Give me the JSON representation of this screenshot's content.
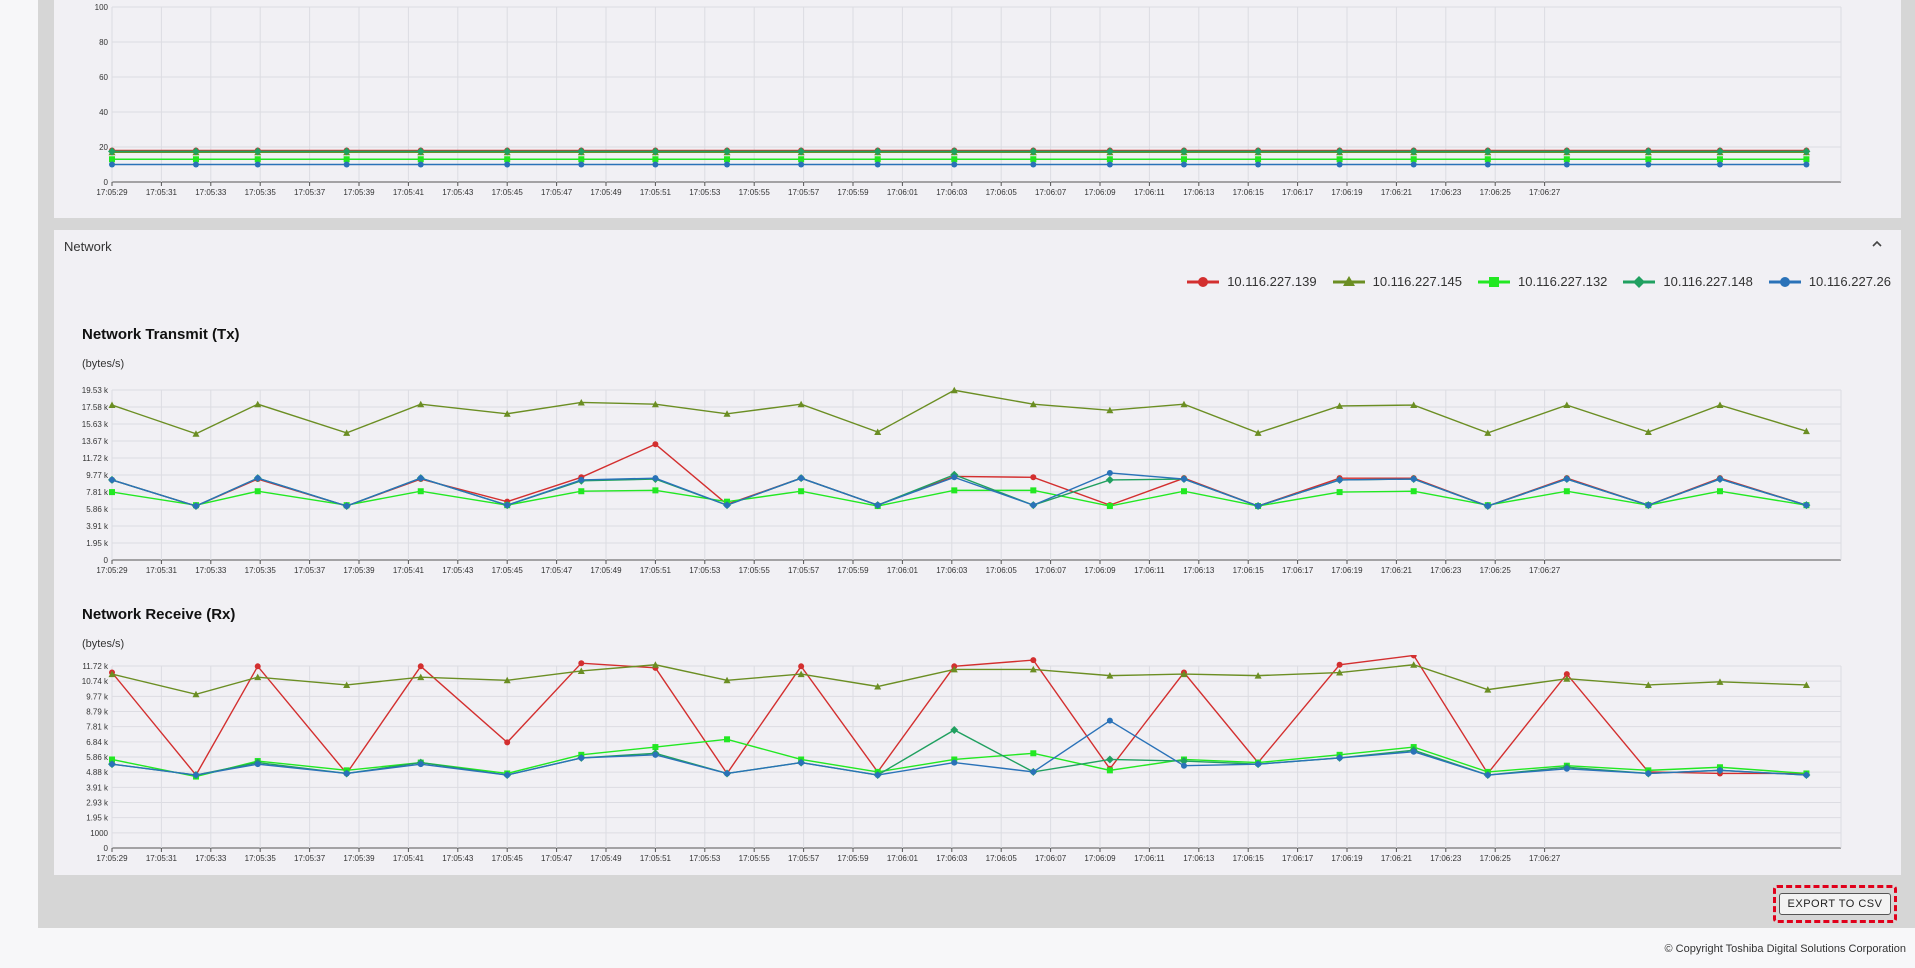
{
  "section_title": "Network",
  "legend": [
    {
      "name": "10.116.227.139",
      "color": "#d32f2f",
      "marker": "circle"
    },
    {
      "name": "10.116.227.145",
      "color": "#6b8e23",
      "marker": "triangle"
    },
    {
      "name": "10.116.227.132",
      "color": "#22e822",
      "marker": "square"
    },
    {
      "name": "10.116.227.148",
      "color": "#20a060",
      "marker": "diamond"
    },
    {
      "name": "10.116.227.26",
      "color": "#2a72b8",
      "marker": "circle"
    }
  ],
  "time_labels": [
    "17:05:29",
    "17:05:31",
    "17:05:33",
    "17:05:35",
    "17:05:37",
    "17:05:39",
    "17:05:41",
    "17:05:43",
    "17:05:45",
    "17:05:47",
    "17:05:49",
    "17:05:51",
    "17:05:53",
    "17:05:55",
    "17:05:57",
    "17:05:59",
    "17:06:01",
    "17:06:03",
    "17:06:05",
    "17:06:07",
    "17:06:09",
    "17:06:11",
    "17:06:13",
    "17:06:15",
    "17:06:17",
    "17:06:19",
    "17:06:21",
    "17:06:23",
    "17:06:25",
    "17:06:27"
  ],
  "chart_data": [
    {
      "type": "line",
      "title": "",
      "ylabel": "",
      "ylim": [
        0,
        100
      ],
      "y_ticks": [
        "0",
        "20",
        "40",
        "60",
        "80",
        "100"
      ],
      "x": [
        29,
        32.4,
        34.9,
        38.5,
        41.5,
        45,
        48,
        51,
        53.9,
        56.9,
        60,
        63.1,
        66.3,
        69.4,
        72.4,
        75.4,
        78.7,
        81.7,
        84.7,
        87.9,
        91.2,
        94.1,
        97.6
      ],
      "series": [
        {
          "name": "10.116.227.139",
          "values": [
            18,
            18,
            18,
            18,
            18,
            18,
            18,
            18,
            18,
            18,
            18,
            18,
            18,
            18,
            18,
            18,
            18,
            18,
            18,
            18,
            18,
            18,
            18
          ]
        },
        {
          "name": "10.116.227.145",
          "values": [
            17,
            17,
            17,
            17,
            17,
            17,
            17,
            17,
            17,
            17,
            17,
            17,
            17,
            17,
            17,
            17,
            17,
            17,
            17,
            17,
            17,
            17,
            17
          ]
        },
        {
          "name": "10.116.227.132",
          "values": [
            13,
            13,
            13,
            13,
            13,
            13,
            13,
            13,
            13,
            13,
            13,
            13,
            13,
            13,
            13,
            13,
            13,
            13,
            13,
            13,
            13,
            13,
            13
          ]
        },
        {
          "name": "10.116.227.148",
          "values": [
            17.5,
            17.5,
            17.5,
            17.5,
            17.5,
            17.5,
            17.5,
            17.5,
            17.5,
            17.5,
            17.5,
            17.5,
            17.5,
            17.5,
            17.5,
            17.5,
            17.5,
            17.5,
            17.5,
            17.5,
            17.5,
            17.5,
            17.5
          ]
        },
        {
          "name": "10.116.227.26",
          "values": [
            10,
            10,
            10,
            10,
            10,
            10,
            10,
            10,
            10,
            10,
            10,
            10,
            10,
            10,
            10,
            10,
            10,
            10,
            10,
            10,
            10,
            10,
            10
          ]
        }
      ]
    },
    {
      "type": "line",
      "title": "Network Transmit (Tx)",
      "ylabel": "(bytes/s)",
      "ylim": [
        0,
        19530
      ],
      "y_ticks": [
        "0",
        "1.95 k",
        "3.91 k",
        "5.86 k",
        "7.81 k",
        "9.77 k",
        "11.72 k",
        "13.67 k",
        "15.63 k",
        "17.58 k",
        "19.53 k"
      ],
      "x": [
        29,
        32.4,
        34.9,
        38.5,
        41.5,
        45,
        48,
        51,
        53.9,
        56.9,
        60,
        63.1,
        66.3,
        69.4,
        72.4,
        75.4,
        78.7,
        81.7,
        84.7,
        87.9,
        91.2,
        94.1,
        97.6
      ],
      "series": [
        {
          "name": "10.116.227.139",
          "values": [
            9200,
            6200,
            9300,
            6200,
            9300,
            6700,
            9500,
            13300,
            6400,
            9400,
            6300,
            9600,
            9500,
            6300,
            9400,
            6200,
            9400,
            9400,
            6200,
            9400,
            6300,
            9400,
            6300
          ]
        },
        {
          "name": "10.116.227.145",
          "values": [
            17800,
            14500,
            17900,
            14600,
            17900,
            16800,
            18100,
            17900,
            16800,
            17900,
            14700,
            19500,
            17900,
            17200,
            17900,
            14600,
            17700,
            17800,
            14600,
            17800,
            14700,
            17800,
            14800
          ]
        },
        {
          "name": "10.116.227.132",
          "values": [
            7800,
            6300,
            7900,
            6300,
            7900,
            6300,
            7900,
            8000,
            6700,
            7900,
            6200,
            8000,
            8000,
            6200,
            7900,
            6200,
            7800,
            7900,
            6300,
            7900,
            6300,
            7900,
            6300
          ]
        },
        {
          "name": "10.116.227.148",
          "values": [
            9200,
            6200,
            9400,
            6200,
            9400,
            6300,
            9100,
            9300,
            6300,
            9400,
            6300,
            9800,
            6300,
            9200,
            9300,
            6200,
            9200,
            9300,
            6200,
            9300,
            6300,
            9300,
            6300
          ]
        },
        {
          "name": "10.116.227.26",
          "values": [
            9200,
            6200,
            9400,
            6200,
            9400,
            6300,
            9200,
            9400,
            6300,
            9400,
            6300,
            9500,
            6300,
            10000,
            9300,
            6200,
            9200,
            9300,
            6200,
            9300,
            6300,
            9300,
            6300
          ]
        }
      ]
    },
    {
      "type": "line",
      "title": "Network Receive (Rx)",
      "ylabel": "(bytes/s)",
      "ylim": [
        0,
        11720
      ],
      "y_ticks": [
        "0",
        "1000",
        "1.95 k",
        "2.93 k",
        "3.91 k",
        "4.88 k",
        "5.86 k",
        "6.84 k",
        "7.81 k",
        "8.79 k",
        "9.77 k",
        "10.74 k",
        "11.72 k"
      ],
      "x": [
        29,
        32.4,
        34.9,
        38.5,
        41.5,
        45,
        48,
        51,
        53.9,
        56.9,
        60,
        63.1,
        66.3,
        69.4,
        72.4,
        75.4,
        78.7,
        81.7,
        84.7,
        87.9,
        91.2,
        94.1,
        97.6
      ],
      "series": [
        {
          "name": "10.116.227.139",
          "values": [
            11300,
            4700,
            11700,
            4800,
            11700,
            6800,
            11900,
            11600,
            4800,
            11700,
            4900,
            11700,
            12100,
            5100,
            11300,
            5500,
            11800,
            12400,
            4800,
            11200,
            4900,
            4800,
            4800
          ]
        },
        {
          "name": "10.116.227.145",
          "values": [
            11200,
            9900,
            11000,
            10500,
            11000,
            10800,
            11400,
            11800,
            10800,
            11200,
            10400,
            11500,
            11500,
            11100,
            11200,
            11100,
            11300,
            11800,
            10200,
            10900,
            10500,
            10700,
            10500
          ]
        },
        {
          "name": "10.116.227.132",
          "values": [
            5700,
            4600,
            5600,
            5000,
            5500,
            4800,
            6000,
            6500,
            7000,
            5700,
            4900,
            5700,
            6100,
            5000,
            5700,
            5500,
            6000,
            6500,
            4900,
            5300,
            5000,
            5200,
            4800
          ]
        },
        {
          "name": "10.116.227.148",
          "values": [
            5400,
            4700,
            5500,
            4800,
            5500,
            4700,
            5800,
            6100,
            4800,
            5500,
            4700,
            7600,
            4900,
            5700,
            5600,
            5400,
            5800,
            6300,
            4700,
            5200,
            4800,
            5000,
            4700
          ]
        },
        {
          "name": "10.116.227.26",
          "values": [
            5400,
            4700,
            5400,
            4800,
            5400,
            4700,
            5800,
            6000,
            4800,
            5500,
            4700,
            5500,
            4900,
            8200,
            5300,
            5400,
            5800,
            6200,
            4700,
            5100,
            4800,
            5000,
            4700
          ]
        }
      ]
    }
  ],
  "export_label": "EXPORT TO CSV",
  "copyright": "© Copyright Toshiba Digital Solutions Corporation"
}
